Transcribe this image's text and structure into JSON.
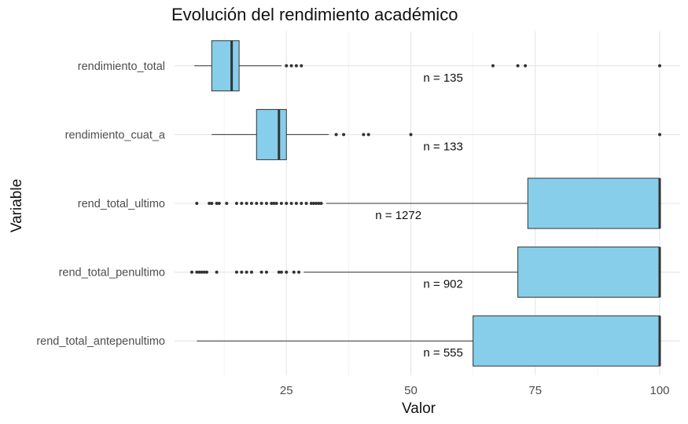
{
  "chart_data": {
    "type": "boxplot",
    "orientation": "horizontal",
    "title": "Evolución del rendimiento académico",
    "xlabel": "Valor",
    "ylabel": "Variable",
    "xlim": [
      5,
      101
    ],
    "xticks": [
      25,
      50,
      75,
      100
    ],
    "grid": true,
    "fill_color": "#87CEEB",
    "series": [
      {
        "name": "rendimiento_total",
        "q1": 10,
        "median": 14,
        "q3": 15.5,
        "whisker_low": 6.5,
        "whisker_high": 24,
        "outliers": [
          25,
          26,
          27,
          28,
          66.5,
          71.5,
          73,
          100
        ],
        "n_label": "n = 135",
        "n_x": 56.5
      },
      {
        "name": "rendimiento_cuat_a",
        "q1": 19,
        "median": 23.5,
        "q3": 25,
        "whisker_low": 10,
        "whisker_high": 33.5,
        "outliers": [
          35,
          36.5,
          40.5,
          41.5,
          50,
          100
        ],
        "n_label": "n = 133",
        "n_x": 56.5
      },
      {
        "name": "rend_total_ultimo",
        "q1": 73.5,
        "median": 100,
        "q3": 100,
        "whisker_low": 33,
        "whisker_high": 100,
        "outliers": [
          7,
          9.5,
          10,
          11,
          11.5,
          13,
          15,
          16,
          17,
          18,
          19,
          20,
          21,
          22,
          22.5,
          23,
          24,
          25,
          26,
          27,
          28,
          29,
          30,
          30.5,
          31,
          31.5,
          32
        ],
        "n_label": "n = 1272",
        "n_x": 47.5
      },
      {
        "name": "rend_total_penultimo",
        "q1": 71.5,
        "median": 100,
        "q3": 100,
        "whisker_low": 28.5,
        "whisker_high": 100,
        "outliers": [
          6,
          7,
          7.5,
          8,
          8.5,
          9,
          11,
          15,
          16,
          17,
          18,
          20,
          21,
          23.5,
          24,
          25,
          26.5,
          27.5
        ],
        "n_label": "n = 902",
        "n_x": 56.5
      },
      {
        "name": "rend_total_antepenultimo",
        "q1": 62.5,
        "median": 100,
        "q3": 100,
        "whisker_low": 7,
        "whisker_high": 100,
        "outliers": [],
        "n_label": "n = 555",
        "n_x": 56.5
      }
    ]
  }
}
